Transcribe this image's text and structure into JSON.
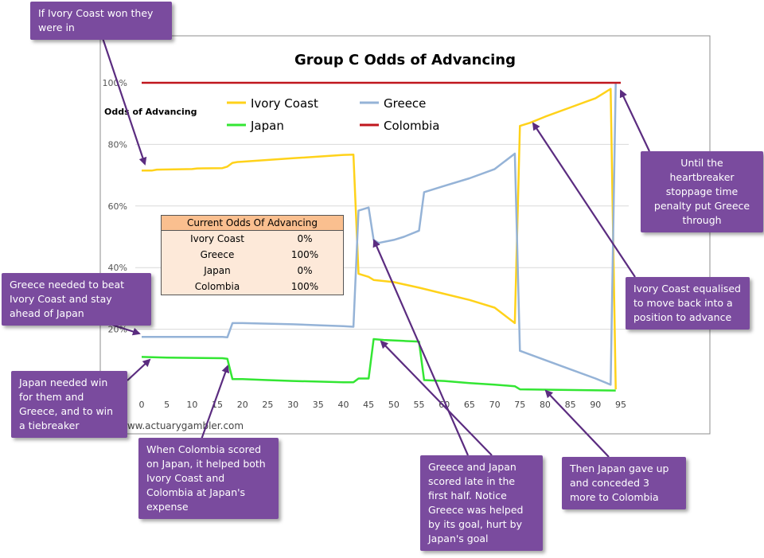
{
  "chart_data": {
    "type": "line",
    "title": "Group C Odds of Advancing",
    "ylabel": "Odds of Advancing",
    "xlabel": "",
    "watermark": "www.actuarygambler.com",
    "xlim": [
      0,
      95
    ],
    "ylim": [
      0,
      100
    ],
    "x_ticks": [
      0,
      5,
      10,
      15,
      20,
      25,
      30,
      35,
      40,
      45,
      50,
      55,
      60,
      65,
      70,
      75,
      80,
      85,
      90,
      95
    ],
    "y_ticks": [
      {
        "value": 20,
        "label": "20%"
      },
      {
        "value": 40,
        "label": "40%"
      },
      {
        "value": 60,
        "label": "60%"
      },
      {
        "value": 80,
        "label": "80%"
      },
      {
        "value": 100,
        "label": "100%"
      }
    ],
    "legend_position": "top",
    "series": [
      {
        "name": "Ivory Coast",
        "color": "#ffd21a",
        "points": [
          [
            0,
            71.5
          ],
          [
            2,
            71.5
          ],
          [
            3,
            71.8
          ],
          [
            10,
            72
          ],
          [
            11,
            72.2
          ],
          [
            16,
            72.3
          ],
          [
            17,
            72.8
          ],
          [
            18,
            74
          ],
          [
            19,
            74.3
          ],
          [
            20,
            74.4
          ],
          [
            30,
            75.5
          ],
          [
            40,
            76.6
          ],
          [
            42,
            76.7
          ],
          [
            43,
            38
          ],
          [
            45,
            37
          ],
          [
            46,
            36
          ],
          [
            50,
            35.3
          ],
          [
            55,
            33.5
          ],
          [
            60,
            31.5
          ],
          [
            65,
            29.5
          ],
          [
            70,
            27
          ],
          [
            74,
            22
          ],
          [
            75,
            86
          ],
          [
            77,
            87
          ],
          [
            80,
            89
          ],
          [
            85,
            92
          ],
          [
            90,
            95
          ],
          [
            93,
            98
          ],
          [
            94,
            0.5
          ]
        ]
      },
      {
        "name": "Greece",
        "color": "#95b3d7",
        "points": [
          [
            0,
            17.5
          ],
          [
            16,
            17.5
          ],
          [
            17,
            17.4
          ],
          [
            18,
            22
          ],
          [
            20,
            22
          ],
          [
            25,
            21.8
          ],
          [
            30,
            21.6
          ],
          [
            35,
            21.3
          ],
          [
            40,
            21
          ],
          [
            42,
            20.8
          ],
          [
            43,
            58.5
          ],
          [
            45,
            59.5
          ],
          [
            46,
            49
          ],
          [
            47,
            48
          ],
          [
            50,
            49
          ],
          [
            52,
            50
          ],
          [
            55,
            52
          ],
          [
            56,
            64.5
          ],
          [
            60,
            66.5
          ],
          [
            65,
            69
          ],
          [
            70,
            72
          ],
          [
            74,
            77
          ],
          [
            75,
            13
          ],
          [
            80,
            10
          ],
          [
            85,
            7
          ],
          [
            90,
            4
          ],
          [
            93,
            2
          ],
          [
            94,
            100
          ]
        ]
      },
      {
        "name": "Japan",
        "color": "#33e633",
        "points": [
          [
            0,
            11
          ],
          [
            5,
            10.8
          ],
          [
            16,
            10.6
          ],
          [
            17,
            10.4
          ],
          [
            18,
            3.8
          ],
          [
            20,
            3.8
          ],
          [
            25,
            3.5
          ],
          [
            30,
            3.2
          ],
          [
            35,
            3.0
          ],
          [
            40,
            2.8
          ],
          [
            42,
            2.8
          ],
          [
            43,
            4
          ],
          [
            45,
            4
          ],
          [
            46,
            16.8
          ],
          [
            48,
            16.5
          ],
          [
            52,
            16.2
          ],
          [
            55,
            16
          ],
          [
            56,
            3.5
          ],
          [
            60,
            3.2
          ],
          [
            65,
            2.5
          ],
          [
            70,
            2
          ],
          [
            74,
            1.5
          ],
          [
            75,
            0.5
          ],
          [
            94,
            0.1
          ]
        ]
      },
      {
        "name": "Colombia",
        "color": "#c0161d",
        "points": [
          [
            0,
            100
          ],
          [
            95,
            100
          ]
        ]
      }
    ]
  },
  "table": {
    "title": "Current Odds Of Advancing",
    "rows": [
      {
        "team": "Ivory Coast",
        "odds": "0%"
      },
      {
        "team": "Greece",
        "odds": "100%"
      },
      {
        "team": "Japan",
        "odds": "0%"
      },
      {
        "team": "Colombia",
        "odds": "100%"
      }
    ]
  },
  "callouts": {
    "ivory_won": "If Ivory Coast won they were in",
    "greece_needed": "Greece needed to beat Ivory Coast and stay ahead of Japan",
    "japan_needed": "Japan needed win for them and Greece, and to win a tiebreaker",
    "colombia_scored": "When Colombia scored on Japan, it helped both Ivory Coast and Colombia at Japan's expense",
    "greece_japan_scored": "Greece and Japan scored late in the first half. Notice Greece was helped by its goal, hurt by Japan's goal",
    "japan_gave_up": "Then Japan gave up and conceded 3 more to Colombia",
    "ivory_equalised": "Ivory Coast equalised to move back into a position to advance",
    "heartbreaker": "Until the heartbreaker stoppage time penalty put Greece through"
  }
}
